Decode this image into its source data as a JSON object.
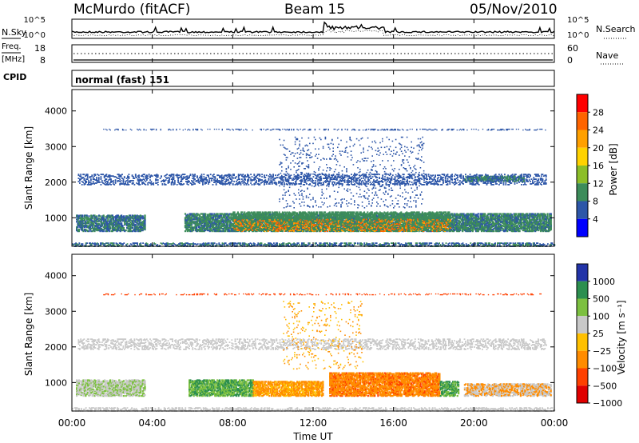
{
  "header": {
    "station": "McMurdo (fitACF)",
    "beam": "Beam 15",
    "date": "05/Nov/2010"
  },
  "params": {
    "nsky_label": "N.Sky",
    "nsky_ticks": [
      "10^5",
      "10^0"
    ],
    "nsearch_label": "N.Search",
    "nsearch_ticks": [
      "10^5",
      "10^0"
    ],
    "freq_label": "Freq.",
    "freq_unit": "[MHz]",
    "freq_ticks": [
      "18",
      "8"
    ],
    "nave_label": "Nave",
    "nave_ticks": [
      "60",
      "0"
    ],
    "cpid_label": "CPID",
    "cpid_value": "normal (fast) 151"
  },
  "chart_data": [
    {
      "type": "heatmap",
      "name": "Power",
      "ylabel": "Slant Range [km]",
      "yticks": [
        "1000",
        "2000",
        "3000",
        "4000"
      ],
      "ylim": [
        200,
        4600
      ],
      "xlim_hours": [
        0,
        24
      ],
      "colorbar_label": "Power [dB]",
      "colorbar_ticks": [
        "28",
        "24",
        "20",
        "16",
        "12",
        "8",
        "4"
      ],
      "colorbar_colors": [
        "#ff0000",
        "#ff6400",
        "#ffa000",
        "#ffd200",
        "#8cbe28",
        "#3c8c5a",
        "#2d56a8",
        "#0000ff"
      ],
      "bands": [
        {
          "range_km": 2100,
          "start_h": 0.4,
          "end_h": 23.5,
          "level": "weak"
        },
        {
          "range_km": 3500,
          "start_h": 2.0,
          "end_h": 23.5,
          "level": "weak"
        },
        {
          "range_km": 900,
          "start_h": 0.0,
          "end_h": 24.0,
          "level": "strong"
        },
        {
          "range_km": 300,
          "start_h": 0.0,
          "end_h": 24.0,
          "level": "weak"
        }
      ]
    },
    {
      "type": "heatmap",
      "name": "Velocity",
      "ylabel": "Slant Range [km]",
      "yticks": [
        "1000",
        "2000",
        "3000",
        "4000"
      ],
      "ylim": [
        200,
        4600
      ],
      "xlim_hours": [
        0,
        24
      ],
      "colorbar_label": "Velocity [m s⁻¹]",
      "colorbar_ticks": [
        "1000",
        "500",
        "100",
        "25",
        "−25",
        "−100",
        "−500",
        "−1000"
      ],
      "colorbar_colors": [
        "#2233a8",
        "#2c8f4f",
        "#7cc040",
        "#c8c8c8",
        "#ffc000",
        "#ff8c00",
        "#ff4000",
        "#e00000"
      ]
    }
  ],
  "xaxis": {
    "ticks": [
      "00:00",
      "04:00",
      "08:00",
      "12:00",
      "16:00",
      "20:00",
      "00:00"
    ],
    "label": "Time UT"
  }
}
